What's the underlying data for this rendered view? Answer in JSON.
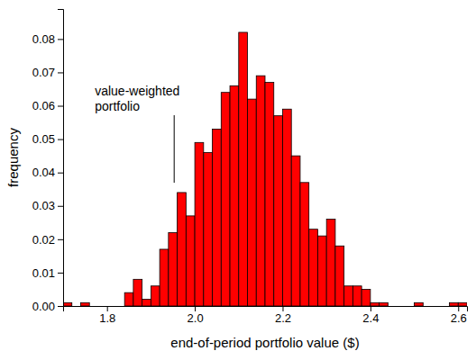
{
  "chart_data": {
    "type": "histogram",
    "xlabel": "end-of-period portfolio value ($)",
    "ylabel": "frequency",
    "bins": [
      1.7,
      1.72,
      1.74,
      1.76,
      1.78,
      1.8,
      1.82,
      1.84,
      1.86,
      1.88,
      1.9,
      1.92,
      1.94,
      1.96,
      1.98,
      2.0,
      2.02,
      2.04,
      2.06,
      2.08,
      2.1,
      2.12,
      2.14,
      2.16,
      2.18,
      2.2,
      2.22,
      2.24,
      2.26,
      2.28,
      2.3,
      2.32,
      2.34,
      2.36,
      2.38,
      2.4,
      2.42,
      2.44,
      2.46,
      2.48,
      2.5,
      2.52,
      2.54,
      2.56,
      2.58,
      2.6,
      2.62
    ],
    "values": [
      0.001,
      0,
      0.001,
      0,
      0,
      0,
      0,
      0.004,
      0.008,
      0.002,
      0.006,
      0.017,
      0.022,
      0.034,
      0.027,
      0.049,
      0.046,
      0.053,
      0.064,
      0.066,
      0.082,
      0.062,
      0.069,
      0.067,
      0.057,
      0.059,
      0.045,
      0.037,
      0.023,
      0.021,
      0.026,
      0.018,
      0.006,
      0.006,
      0.005,
      0.001,
      0.001,
      0,
      0,
      0,
      0.001,
      0,
      0,
      0,
      0.001,
      0.001
    ],
    "color": "#ff0000",
    "xlim": [
      1.7,
      2.62
    ],
    "ylim": [
      0,
      0.089
    ],
    "xticks": [
      {
        "value": 1.8,
        "label": "1.8"
      },
      {
        "value": 2.0,
        "label": "2.0"
      },
      {
        "value": 2.2,
        "label": "2.2"
      },
      {
        "value": 2.4,
        "label": "2.4"
      },
      {
        "value": 2.6,
        "label": "2.6"
      }
    ],
    "yticks": [
      {
        "value": 0,
        "label": "0.00"
      },
      {
        "value": 0.01,
        "label": "0.01"
      },
      {
        "value": 0.02,
        "label": "0.02"
      },
      {
        "value": 0.03,
        "label": "0.03"
      },
      {
        "value": 0.04,
        "label": "0.04"
      },
      {
        "value": 0.05,
        "label": "0.05"
      },
      {
        "value": 0.06,
        "label": "0.06"
      },
      {
        "value": 0.07,
        "label": "0.07"
      },
      {
        "value": 0.08,
        "label": "0.08"
      }
    ],
    "annotations": [
      {
        "lines": [
          "value-weighted",
          "portfolio"
        ],
        "x": 1.953
      }
    ]
  }
}
